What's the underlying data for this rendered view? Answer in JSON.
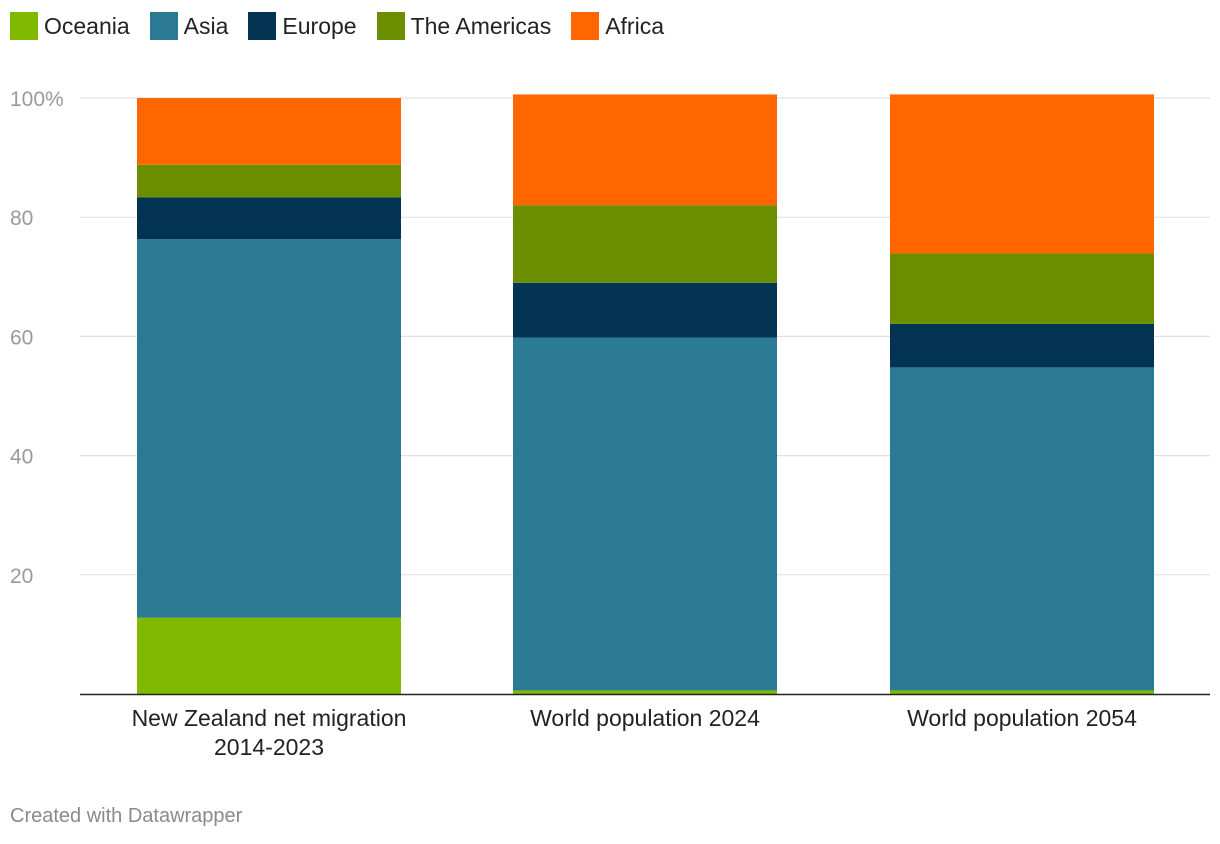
{
  "legend": {
    "items": [
      {
        "label": "Oceania",
        "color": "#7fba00"
      },
      {
        "label": "Asia",
        "color": "#2b7a93"
      },
      {
        "label": "Europe",
        "color": "#023352"
      },
      {
        "label": "The Americas",
        "color": "#6b8e00"
      },
      {
        "label": "Africa",
        "color": "#ff6600"
      }
    ]
  },
  "chart_data": {
    "type": "bar",
    "stacked": true,
    "categories": [
      [
        "New Zealand net migration",
        "2014-2023"
      ],
      [
        "World population 2024"
      ],
      [
        "World population 2054"
      ]
    ],
    "series": [
      {
        "name": "Oceania",
        "color": "#7fba00",
        "values": [
          12.8,
          0.6,
          0.6
        ]
      },
      {
        "name": "Asia",
        "color": "#2b7a93",
        "values": [
          63.5,
          59.2,
          54.2
        ]
      },
      {
        "name": "Europe",
        "color": "#023352",
        "values": [
          7.0,
          9.2,
          7.3
        ]
      },
      {
        "name": "The Americas",
        "color": "#6b8e00",
        "values": [
          5.5,
          13.0,
          11.8
        ]
      },
      {
        "name": "Africa",
        "color": "#ff6600",
        "values": [
          11.2,
          18.6,
          26.7
        ]
      }
    ],
    "ylim": [
      0,
      100
    ],
    "yticks": [
      {
        "value": 20,
        "label": "20"
      },
      {
        "value": 40,
        "label": "40"
      },
      {
        "value": 60,
        "label": "60"
      },
      {
        "value": 80,
        "label": "80"
      },
      {
        "value": 100,
        "label": "100%"
      }
    ],
    "grid": true,
    "legend_position": "top-left",
    "title": "",
    "xlabel": "",
    "ylabel": ""
  },
  "footer": {
    "credit": "Created with Datawrapper"
  }
}
